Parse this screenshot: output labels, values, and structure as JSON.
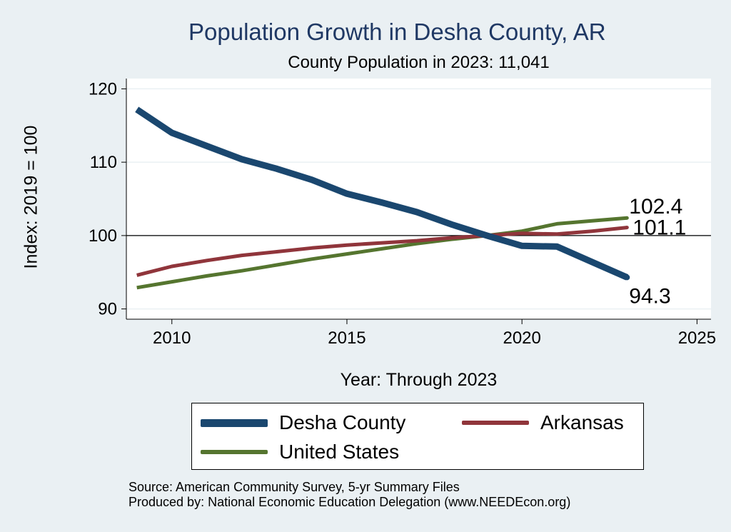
{
  "chart_data": {
    "type": "line",
    "title": "Population Growth in Desha County, AR",
    "subtitle": "County Population in 2023: 11,041",
    "xlabel": "Year: Through 2023",
    "ylabel": "Index: 2019 = 100",
    "xlim": [
      2008.7,
      2025.4
    ],
    "ylim": [
      88.6,
      121.4
    ],
    "xticks": [
      2010,
      2015,
      2020,
      2025
    ],
    "yticks": [
      90,
      100,
      110,
      120
    ],
    "reference_line": 100,
    "grid": true,
    "legend_position": "bottom",
    "series": [
      {
        "name": "Desha  County",
        "color": "#1a476f",
        "width": 9,
        "x": [
          2009,
          2010,
          2011,
          2012,
          2013,
          2014,
          2015,
          2016,
          2017,
          2018,
          2019,
          2020,
          2021,
          2022,
          2023
        ],
        "values": [
          117.2,
          114.0,
          112.2,
          110.4,
          109.1,
          107.6,
          105.7,
          104.5,
          103.2,
          101.5,
          100.0,
          98.6,
          98.5,
          96.4,
          94.3
        ],
        "end_label": "94.3"
      },
      {
        "name": "Arkansas",
        "color": "#90353b",
        "width": 5,
        "x": [
          2009,
          2010,
          2011,
          2012,
          2013,
          2014,
          2015,
          2016,
          2017,
          2018,
          2019,
          2020,
          2021,
          2022,
          2023
        ],
        "values": [
          94.6,
          95.8,
          96.6,
          97.3,
          97.8,
          98.3,
          98.7,
          99.0,
          99.3,
          99.7,
          100.0,
          100.3,
          100.2,
          100.6,
          101.1
        ],
        "end_label": "101.1"
      },
      {
        "name": "United States",
        "color": "#55752f",
        "width": 5,
        "x": [
          2009,
          2010,
          2011,
          2012,
          2013,
          2014,
          2015,
          2016,
          2017,
          2018,
          2019,
          2020,
          2021,
          2022,
          2023
        ],
        "values": [
          92.9,
          93.7,
          94.5,
          95.2,
          96.0,
          96.8,
          97.5,
          98.2,
          98.9,
          99.5,
          100.0,
          100.6,
          101.6,
          102.0,
          102.4
        ],
        "end_label": "102.4"
      }
    ]
  },
  "source_line": "Source: American Community Survey, 5-yr Summary Files",
  "produced_line": "Produced by: National Economic Education Delegation (www.NEEDEcon.org)"
}
